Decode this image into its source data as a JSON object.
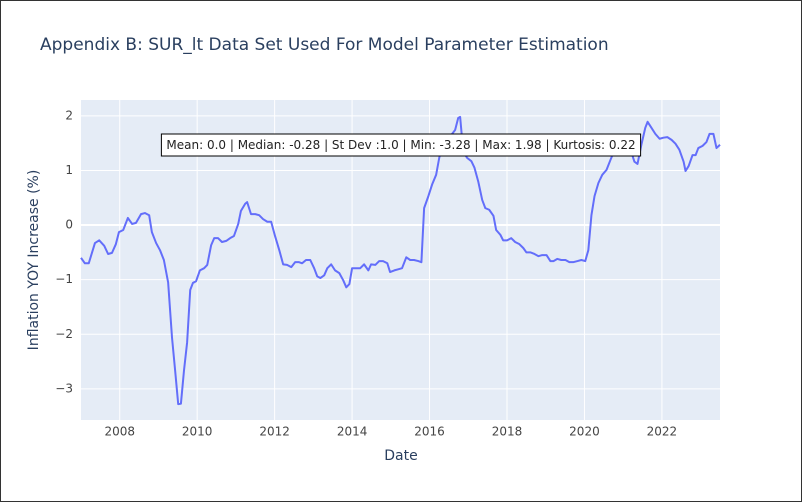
{
  "chart_data": {
    "type": "line",
    "title": "Appendix B: SUR_lt Data Set Used For Model Parameter Estimation",
    "x_label": "Date",
    "y_label": "Inflation YOY Increase (%)",
    "annotation": "Mean: 0.0 | Median: -0.28 | St Dev :1.0 | Min: -3.28 | Max: 1.98 | Kurtosis: 0.22",
    "color": "#636efa",
    "grid": true,
    "xlim": [
      2007.0,
      2023.5
    ],
    "ylim": [
      -3.57,
      2.29
    ],
    "xticks": [
      2008,
      2010,
      2012,
      2014,
      2016,
      2018,
      2020,
      2022
    ],
    "yticks": [
      {
        "value": -3,
        "label": "−3"
      },
      {
        "value": -2,
        "label": "−2"
      },
      {
        "value": -1,
        "label": "−1"
      },
      0,
      1,
      2
    ],
    "x": [
      2007.0,
      2007.1,
      2007.2,
      2007.36,
      2007.47,
      2007.6,
      2007.7,
      2007.8,
      2007.9,
      2007.98,
      2008.09,
      2008.21,
      2008.32,
      2008.42,
      2008.55,
      2008.65,
      2008.76,
      2008.83,
      2008.94,
      2009.04,
      2009.14,
      2009.25,
      2009.35,
      2009.43,
      2009.51,
      2009.58,
      2009.66,
      2009.74,
      2009.82,
      2009.89,
      2009.97,
      2010.07,
      2010.18,
      2010.26,
      2010.36,
      2010.44,
      2010.54,
      2010.64,
      2010.75,
      2010.85,
      2010.95,
      2011.06,
      2011.13,
      2011.24,
      2011.29,
      2011.39,
      2011.5,
      2011.6,
      2011.7,
      2011.81,
      2011.91,
      2012.01,
      2012.12,
      2012.22,
      2012.32,
      2012.43,
      2012.53,
      2012.63,
      2012.71,
      2012.81,
      2012.92,
      2013.02,
      2013.1,
      2013.18,
      2013.28,
      2013.36,
      2013.46,
      2013.56,
      2013.67,
      2013.77,
      2013.85,
      2013.93,
      2014.0,
      2014.11,
      2014.21,
      2014.31,
      2014.42,
      2014.49,
      2014.6,
      2014.7,
      2014.8,
      2014.91,
      2014.98,
      2015.09,
      2015.19,
      2015.29,
      2015.4,
      2015.5,
      2015.6,
      2015.71,
      2015.79,
      2015.86,
      2015.97,
      2016.07,
      2016.17,
      2016.25,
      2016.35,
      2016.46,
      2016.56,
      2016.66,
      2016.74,
      2016.79,
      2016.87,
      2016.97,
      2017.08,
      2017.16,
      2017.26,
      2017.36,
      2017.44,
      2017.54,
      2017.65,
      2017.72,
      2017.83,
      2017.9,
      2018.0,
      2018.11,
      2018.21,
      2018.32,
      2018.42,
      2018.5,
      2018.6,
      2018.71,
      2018.81,
      2018.91,
      2019.02,
      2019.12,
      2019.2,
      2019.3,
      2019.4,
      2019.51,
      2019.61,
      2019.71,
      2019.82,
      2019.92,
      2020.02,
      2020.1,
      2020.18,
      2020.26,
      2020.36,
      2020.46,
      2020.57,
      2020.67,
      2020.78,
      2020.88,
      2020.98,
      2021.08,
      2021.19,
      2021.29,
      2021.37,
      2021.47,
      2021.57,
      2021.63,
      2021.73,
      2021.83,
      2021.94,
      2022.04,
      2022.14,
      2022.25,
      2022.35,
      2022.45,
      2022.56,
      2022.61,
      2022.69,
      2022.79,
      2022.87,
      2022.94,
      2023.05,
      2023.15,
      2023.23,
      2023.33,
      2023.41,
      2023.5
    ],
    "values": [
      -0.6,
      -0.7,
      -0.7,
      -0.33,
      -0.28,
      -0.38,
      -0.53,
      -0.51,
      -0.35,
      -0.13,
      -0.09,
      0.13,
      0.02,
      0.04,
      0.2,
      0.22,
      0.18,
      -0.13,
      -0.33,
      -0.46,
      -0.64,
      -1.05,
      -2.06,
      -2.66,
      -3.28,
      -3.27,
      -2.66,
      -2.15,
      -1.19,
      -1.06,
      -1.03,
      -0.83,
      -0.79,
      -0.73,
      -0.37,
      -0.24,
      -0.24,
      -0.31,
      -0.29,
      -0.24,
      -0.2,
      0.02,
      0.26,
      0.39,
      0.42,
      0.2,
      0.2,
      0.18,
      0.11,
      0.06,
      0.06,
      -0.2,
      -0.46,
      -0.72,
      -0.73,
      -0.77,
      -0.68,
      -0.68,
      -0.7,
      -0.64,
      -0.64,
      -0.79,
      -0.94,
      -0.97,
      -0.92,
      -0.79,
      -0.72,
      -0.83,
      -0.88,
      -1.01,
      -1.14,
      -1.08,
      -0.79,
      -0.79,
      -0.79,
      -0.72,
      -0.83,
      -0.72,
      -0.73,
      -0.66,
      -0.66,
      -0.7,
      -0.86,
      -0.83,
      -0.81,
      -0.79,
      -0.59,
      -0.64,
      -0.64,
      -0.66,
      -0.68,
      0.31,
      0.53,
      0.75,
      0.92,
      1.23,
      1.5,
      1.6,
      1.65,
      1.74,
      1.96,
      1.98,
      1.34,
      1.23,
      1.17,
      1.05,
      0.79,
      0.46,
      0.31,
      0.28,
      0.17,
      -0.09,
      -0.18,
      -0.28,
      -0.28,
      -0.24,
      -0.31,
      -0.35,
      -0.42,
      -0.5,
      -0.5,
      -0.53,
      -0.57,
      -0.55,
      -0.55,
      -0.66,
      -0.66,
      -0.62,
      -0.64,
      -0.64,
      -0.68,
      -0.68,
      -0.66,
      -0.64,
      -0.66,
      -0.46,
      0.18,
      0.53,
      0.77,
      0.92,
      1.01,
      1.19,
      1.38,
      1.47,
      1.47,
      1.56,
      1.38,
      1.16,
      1.12,
      1.47,
      1.78,
      1.89,
      1.78,
      1.67,
      1.58,
      1.6,
      1.61,
      1.56,
      1.49,
      1.38,
      1.16,
      0.99,
      1.08,
      1.28,
      1.28,
      1.41,
      1.45,
      1.52,
      1.67,
      1.67,
      1.41,
      1.47
    ]
  }
}
